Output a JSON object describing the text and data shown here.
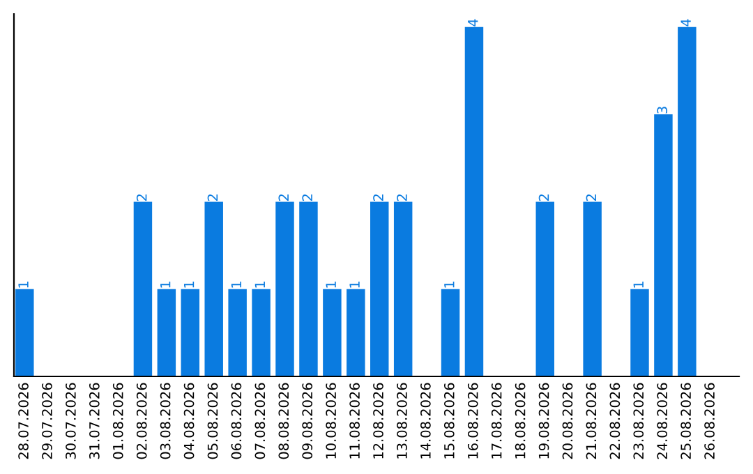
{
  "chart_data": {
    "type": "bar",
    "categories": [
      "28.07.2026",
      "29.07.2026",
      "30.07.2026",
      "31.07.2026",
      "01.08.2026",
      "02.08.2026",
      "03.08.2026",
      "04.08.2026",
      "05.08.2026",
      "06.08.2026",
      "07.08.2026",
      "08.08.2026",
      "09.08.2026",
      "10.08.2026",
      "11.08.2026",
      "12.08.2026",
      "13.08.2026",
      "14.08.2026",
      "15.08.2026",
      "16.08.2026",
      "17.08.2026",
      "18.08.2026",
      "19.08.2026",
      "20.08.2026",
      "21.08.2026",
      "22.08.2026",
      "23.08.2026",
      "24.08.2026",
      "25.08.2026",
      "26.08.2026"
    ],
    "values": [
      1,
      null,
      null,
      null,
      null,
      2,
      1,
      1,
      2,
      1,
      1,
      2,
      2,
      1,
      1,
      2,
      2,
      null,
      1,
      4,
      null,
      null,
      2,
      null,
      2,
      null,
      1,
      3,
      4,
      null
    ],
    "color": "#0a7be0",
    "ylim": [
      0,
      4.15
    ],
    "tick_labels": "x",
    "data_labels": true,
    "grid": false,
    "legend": false
  }
}
